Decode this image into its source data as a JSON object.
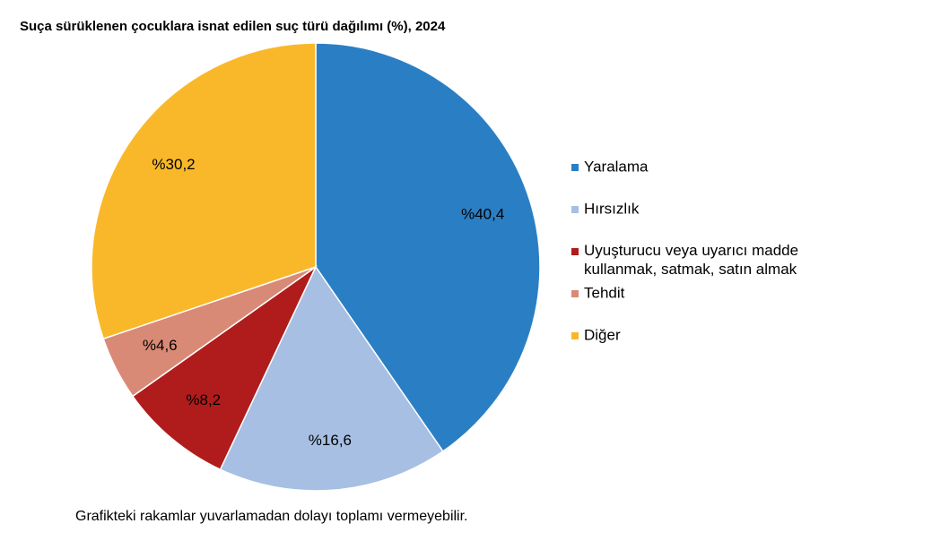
{
  "chart_data": {
    "type": "pie",
    "title": "Suça sürüklenen çocuklara isnat edilen suç türü dağılımı (%), 2024",
    "categories": [
      "Yaralama",
      "Hırsızlık",
      "Uyuşturucu veya uyarıcı madde kullanmak, satmak, satın almak",
      "Tehdit",
      "Diğer"
    ],
    "values": [
      40.4,
      16.6,
      8.2,
      4.6,
      30.2
    ],
    "value_labels": [
      "%40,4",
      "%16,6",
      "%8,2",
      "%4,6",
      "%30,2"
    ],
    "colors": [
      "#2a7fc4",
      "#a6bfe3",
      "#b01c1c",
      "#d98a76",
      "#f9b82a"
    ],
    "note": "Grafikteki rakamlar yuvarlamadan dolayı toplamı vermeyebilir."
  }
}
